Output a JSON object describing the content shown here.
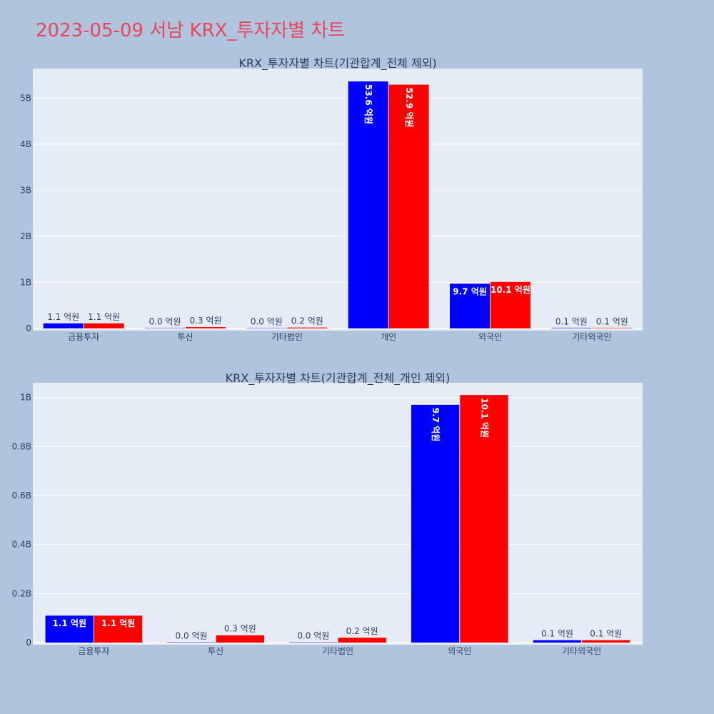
{
  "page_title": "2023-05-09 서남 KRX_투자자별 차트",
  "colors": {
    "background": "#b0c4de",
    "plot_bg": "#e5ecf6",
    "title": "#e8465a",
    "series_a": "#0000ff",
    "series_b": "#ff0000"
  },
  "chart_data": [
    {
      "type": "bar",
      "title": "KRX_투자자별 차트(기관합계_전체 제외)",
      "categories": [
        "금융투자",
        "투신",
        "기타법인",
        "개인",
        "외국인",
        "기타외국인"
      ],
      "series": [
        {
          "color": "#0000ff",
          "values": [
            110000000,
            0,
            0,
            5360000000,
            970000000,
            10000000
          ],
          "labels": [
            "1.1 억원",
            "0.0 억원",
            "0.0 억원",
            "53.6 억원",
            "9.7 억원",
            "0.1 억원"
          ]
        },
        {
          "color": "#ff0000",
          "values": [
            110000000,
            30000000,
            20000000,
            5290000000,
            1010000000,
            10000000
          ],
          "labels": [
            "1.1 억원",
            "0.3 억원",
            "0.2 억원",
            "52.9 억원",
            "10.1 억원",
            "0.1 억원"
          ]
        }
      ],
      "y_ticks": [
        0,
        1000000000,
        2000000000,
        3000000000,
        4000000000,
        5000000000
      ],
      "y_tick_labels": [
        "0",
        "1B",
        "2B",
        "3B",
        "4B",
        "5B"
      ],
      "ylim": [
        0,
        5640000000
      ],
      "grid": true
    },
    {
      "type": "bar",
      "title": "KRX_투자자별 차트(기관합계_전체_개인 제외)",
      "categories": [
        "금융투자",
        "투신",
        "기타법인",
        "외국인",
        "기타외국인"
      ],
      "series": [
        {
          "color": "#0000ff",
          "values": [
            110000000,
            0,
            0,
            970000000,
            10000000
          ],
          "labels": [
            "1.1 억원",
            "0.0 억원",
            "0.0 억원",
            "9.7 억원",
            "0.1 억원"
          ]
        },
        {
          "color": "#ff0000",
          "values": [
            110000000,
            30000000,
            20000000,
            1010000000,
            10000000
          ],
          "labels": [
            "1.1 억원",
            "0.3 억원",
            "0.2 억원",
            "10.1 억원",
            "0.1 억원"
          ]
        }
      ],
      "y_ticks": [
        0,
        200000000,
        400000000,
        600000000,
        800000000,
        1000000000
      ],
      "y_tick_labels": [
        "0",
        "0.2B",
        "0.4B",
        "0.6B",
        "0.8B",
        "1B"
      ],
      "ylim": [
        0,
        1060000000
      ],
      "grid": true
    }
  ]
}
